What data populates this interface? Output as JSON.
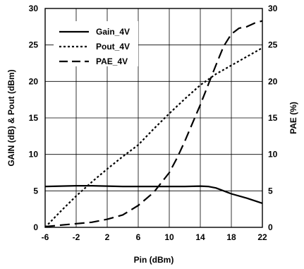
{
  "chart_data": {
    "type": "line",
    "xlabel": "Pin (dBm)",
    "ylabel": "GAIN (dB) & Pout (dBm)",
    "y2label": "PAE (%)",
    "xlim": [
      -6,
      22
    ],
    "ylim": [
      0,
      30
    ],
    "y2lim": [
      0,
      30
    ],
    "x_ticks": [
      -6,
      -2,
      2,
      6,
      10,
      14,
      18,
      22
    ],
    "y_ticks": [
      0,
      5,
      10,
      15,
      20,
      25,
      30
    ],
    "y2_ticks": [
      0,
      5,
      10,
      15,
      20,
      25,
      30
    ],
    "grid": true,
    "legend_position": "top-left",
    "series": [
      {
        "name": "Gain_4V",
        "axis": "left",
        "dash": "solid",
        "x": [
          -6,
          -4,
          -2,
          0,
          2,
          4,
          6,
          8,
          10,
          12,
          14,
          15,
          16,
          17,
          18,
          20,
          22
        ],
        "y": [
          5.6,
          5.65,
          5.7,
          5.7,
          5.65,
          5.6,
          5.6,
          5.6,
          5.6,
          5.6,
          5.65,
          5.6,
          5.4,
          5.0,
          4.6,
          4.0,
          3.3
        ]
      },
      {
        "name": "Pout_4V",
        "axis": "left",
        "dash": "dotted",
        "x": [
          -6,
          -4,
          -2,
          0,
          2,
          4,
          6,
          8,
          10,
          12,
          14,
          16,
          18,
          20,
          22
        ],
        "y": [
          0,
          2.2,
          4.3,
          6.2,
          8.0,
          9.7,
          11.3,
          13.5,
          15.6,
          17.6,
          19.5,
          21.0,
          22.2,
          23.4,
          24.6
        ]
      },
      {
        "name": "PAE_4V",
        "axis": "right",
        "dash": "dashed",
        "x": [
          -6,
          -4,
          -2,
          0,
          2,
          4,
          6,
          8,
          10,
          11,
          12,
          13,
          14,
          15,
          16,
          17,
          18,
          19,
          20,
          21,
          22
        ],
        "y": [
          0.1,
          0.3,
          0.5,
          0.7,
          1.1,
          1.7,
          3.0,
          4.8,
          7.5,
          9.5,
          11.8,
          14.3,
          16.8,
          19.5,
          22.2,
          24.8,
          26.5,
          27.3,
          27.5,
          28.0,
          28.3
        ]
      }
    ]
  }
}
